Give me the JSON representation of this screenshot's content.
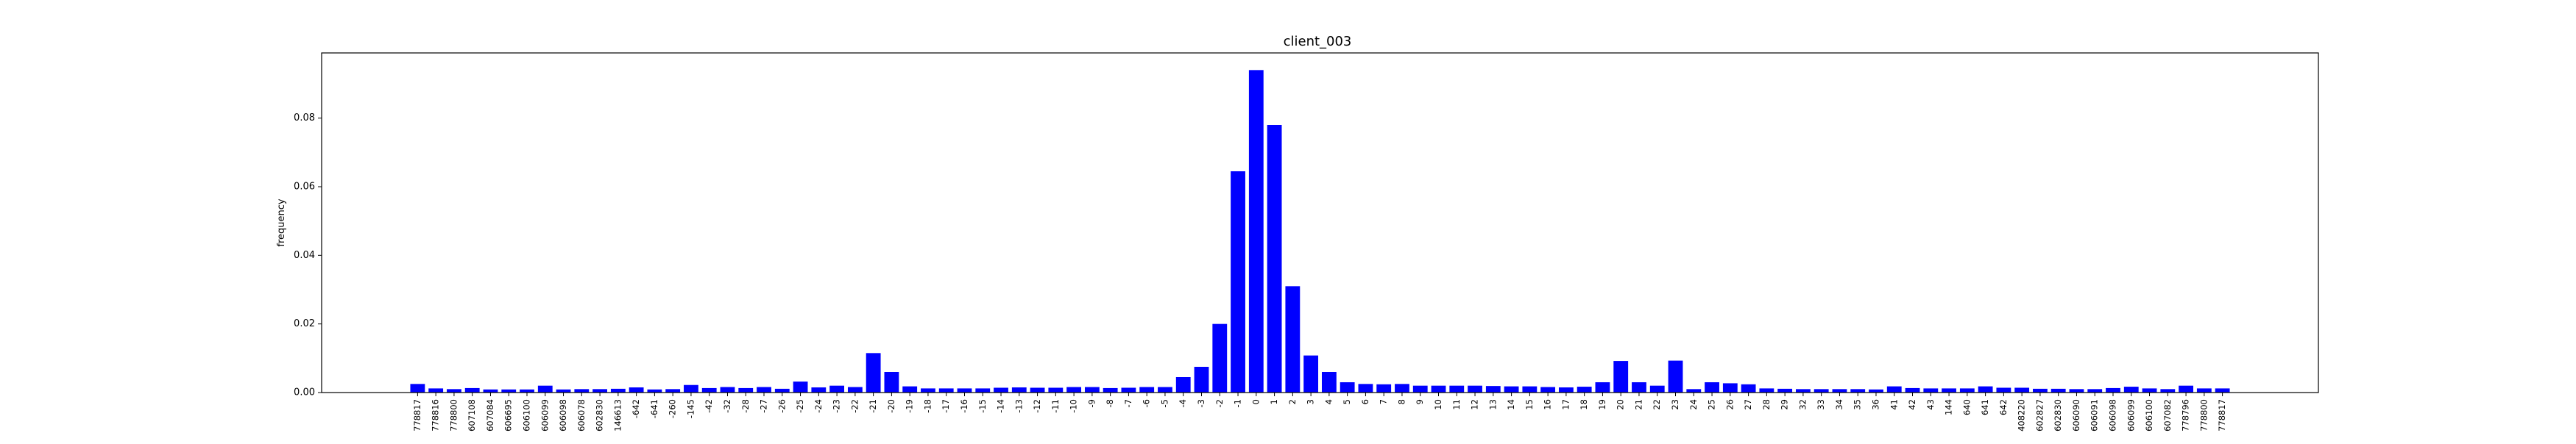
{
  "chart_data": {
    "type": "bar",
    "title": "client_003",
    "xlabel": "",
    "ylabel": "frequency",
    "ylim": [
      0,
      0.099
    ],
    "yticks": [
      "0.00",
      "0.02",
      "0.04",
      "0.06",
      "0.08"
    ],
    "grid": false,
    "legend": "none",
    "bar_color": "#0000ff",
    "categories": [
      "778817",
      "778816",
      "778800",
      "607108",
      "607084",
      "606695",
      "606100",
      "606099",
      "606098",
      "606078",
      "602830",
      "146613",
      "-642",
      "-641",
      "-260",
      "-145",
      "-42",
      "-32",
      "-28",
      "-27",
      "-26",
      "-25",
      "-24",
      "-23",
      "-22",
      "-21",
      "-20",
      "-19",
      "-18",
      "-17",
      "-16",
      "-15",
      "-14",
      "-13",
      "-12",
      "-11",
      "-10",
      "-9",
      "-8",
      "-7",
      "-6",
      "-5",
      "-4",
      "-3",
      "-2",
      "-1",
      "0",
      "1",
      "2",
      "3",
      "4",
      "5",
      "6",
      "7",
      "8",
      "9",
      "10",
      "11",
      "12",
      "13",
      "14",
      "15",
      "16",
      "17",
      "18",
      "19",
      "20",
      "21",
      "22",
      "23",
      "24",
      "25",
      "26",
      "27",
      "28",
      "29",
      "32",
      "33",
      "34",
      "35",
      "36",
      "41",
      "42",
      "43",
      "144",
      "640",
      "641",
      "642",
      "408220",
      "602827",
      "602830",
      "606090",
      "606091",
      "606098",
      "606099",
      "606100",
      "607082",
      "778796",
      "778800",
      "778817"
    ],
    "values": [
      0.0025,
      0.0012,
      0.001,
      0.0013,
      0.0009,
      0.0009,
      0.0009,
      0.002,
      0.0009,
      0.001,
      0.001,
      0.0011,
      0.0015,
      0.0009,
      0.001,
      0.0022,
      0.0013,
      0.0016,
      0.0013,
      0.0016,
      0.0011,
      0.0032,
      0.0015,
      0.002,
      0.0016,
      0.0115,
      0.006,
      0.0018,
      0.0012,
      0.0012,
      0.0012,
      0.0012,
      0.0014,
      0.0015,
      0.0014,
      0.0014,
      0.0016,
      0.0016,
      0.0013,
      0.0014,
      0.0016,
      0.0016,
      0.0045,
      0.0075,
      0.02,
      0.0645,
      0.094,
      0.078,
      0.031,
      0.0108,
      0.006,
      0.003,
      0.0025,
      0.0024,
      0.0025,
      0.002,
      0.002,
      0.002,
      0.002,
      0.0019,
      0.0018,
      0.0018,
      0.0016,
      0.0015,
      0.0017,
      0.003,
      0.0092,
      0.003,
      0.002,
      0.0093,
      0.001,
      0.003,
      0.0027,
      0.0024,
      0.0012,
      0.0011,
      0.001,
      0.001,
      0.001,
      0.001,
      0.0009,
      0.0018,
      0.0013,
      0.0012,
      0.0012,
      0.0012,
      0.0018,
      0.0014,
      0.0014,
      0.0011,
      0.0011,
      0.001,
      0.001,
      0.0013,
      0.0017,
      0.0012,
      0.001,
      0.002,
      0.0012,
      0.0012
    ]
  }
}
